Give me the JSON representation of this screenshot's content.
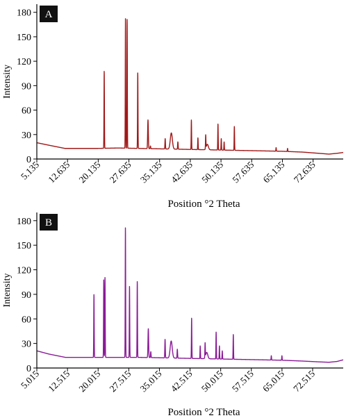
{
  "chart_data": [
    {
      "type": "line",
      "panel_label": "A",
      "xlabel": "Position °2 Theta",
      "ylabel": "Intensity",
      "xlim": [
        5.135,
        80.0
      ],
      "ylim": [
        0,
        190
      ],
      "x_ticks": [
        5.135,
        12.635,
        20.135,
        27.635,
        35.135,
        42.635,
        50.135,
        57.635,
        65.135,
        72.635
      ],
      "x_tick_labels": [
        "5.135",
        "12.635",
        "20.135",
        "27.635",
        "35.135",
        "42.635",
        "50.135",
        "57.635",
        "65.135",
        "72.635"
      ],
      "y_ticks": [
        0,
        30,
        60,
        90,
        120,
        150,
        180
      ],
      "y_tick_labels": [
        "0",
        "30",
        "60",
        "90",
        "120",
        "150",
        "180"
      ],
      "color": "#a01818",
      "baseline": [
        [
          5.135,
          20
        ],
        [
          8.0,
          17
        ],
        [
          12.0,
          13
        ],
        [
          16.0,
          13
        ],
        [
          20.0,
          13
        ],
        [
          25.0,
          13.5
        ],
        [
          30.0,
          13
        ],
        [
          35.0,
          12.5
        ],
        [
          40.0,
          12
        ],
        [
          45.0,
          11.5
        ],
        [
          50.0,
          11
        ],
        [
          55.0,
          10.5
        ],
        [
          60.0,
          10
        ],
        [
          65.0,
          9.5
        ],
        [
          70.0,
          8.5
        ],
        [
          74.0,
          7
        ],
        [
          76.5,
          6
        ],
        [
          78.5,
          7
        ],
        [
          80.0,
          8
        ]
      ],
      "peaks": [
        {
          "x": 21.6,
          "y": 108,
          "w": 0.05
        },
        {
          "x": 26.8,
          "y": 173,
          "w": 0.05
        },
        {
          "x": 27.2,
          "y": 172,
          "w": 0.05
        },
        {
          "x": 29.8,
          "y": 106,
          "w": 0.05
        },
        {
          "x": 32.3,
          "y": 48,
          "w": 0.08
        },
        {
          "x": 32.9,
          "y": 16,
          "w": 0.06
        },
        {
          "x": 36.5,
          "y": 25,
          "w": 0.06
        },
        {
          "x": 38.0,
          "y": 32,
          "w": 0.25
        },
        {
          "x": 39.6,
          "y": 21,
          "w": 0.06
        },
        {
          "x": 42.9,
          "y": 48,
          "w": 0.05
        },
        {
          "x": 44.5,
          "y": 26,
          "w": 0.05
        },
        {
          "x": 46.4,
          "y": 28,
          "w": 0.05
        },
        {
          "x": 46.8,
          "y": 18,
          "w": 0.25
        },
        {
          "x": 49.4,
          "y": 43,
          "w": 0.05
        },
        {
          "x": 50.2,
          "y": 25,
          "w": 0.05
        },
        {
          "x": 50.9,
          "y": 21,
          "w": 0.05
        },
        {
          "x": 53.4,
          "y": 40,
          "w": 0.05
        },
        {
          "x": 63.6,
          "y": 14,
          "w": 0.05
        },
        {
          "x": 66.4,
          "y": 13,
          "w": 0.05
        }
      ]
    },
    {
      "type": "line",
      "panel_label": "B",
      "xlabel": "Position °2 Theta",
      "ylabel": "Intensity",
      "xlim": [
        5.015,
        80.0
      ],
      "ylim": [
        0,
        190
      ],
      "x_ticks": [
        5.015,
        12.515,
        20.015,
        27.515,
        35.015,
        42.515,
        50.015,
        57.515,
        65.015,
        72.515
      ],
      "x_tick_labels": [
        "5.015",
        "12.515",
        "20.015",
        "27.515",
        "35.015",
        "42.515",
        "50.015",
        "57.515",
        "65.015",
        "72.515"
      ],
      "y_ticks": [
        0,
        30,
        60,
        90,
        120,
        150,
        180
      ],
      "y_tick_labels": [
        "0",
        "30",
        "60",
        "90",
        "120",
        "150",
        "180"
      ],
      "color": "#8a1a96",
      "baseline": [
        [
          5.015,
          21
        ],
        [
          8.0,
          17
        ],
        [
          12.0,
          13
        ],
        [
          16.0,
          13
        ],
        [
          20.0,
          13
        ],
        [
          25.0,
          13
        ],
        [
          30.0,
          13
        ],
        [
          35.0,
          12.5
        ],
        [
          40.0,
          12
        ],
        [
          45.0,
          11.5
        ],
        [
          50.0,
          11
        ],
        [
          55.0,
          10.5
        ],
        [
          60.0,
          10
        ],
        [
          65.0,
          9.5
        ],
        [
          70.0,
          8.5
        ],
        [
          74.0,
          7.5
        ],
        [
          76.5,
          7
        ],
        [
          78.5,
          8
        ],
        [
          80.0,
          10
        ]
      ],
      "peaks": [
        {
          "x": 19.0,
          "y": 90,
          "w": 0.05
        },
        {
          "x": 21.4,
          "y": 108,
          "w": 0.05
        },
        {
          "x": 21.7,
          "y": 111,
          "w": 0.05
        },
        {
          "x": 26.7,
          "y": 172,
          "w": 0.05
        },
        {
          "x": 27.7,
          "y": 100,
          "w": 0.05
        },
        {
          "x": 29.6,
          "y": 106,
          "w": 0.05
        },
        {
          "x": 32.3,
          "y": 48,
          "w": 0.08
        },
        {
          "x": 32.9,
          "y": 20,
          "w": 0.06
        },
        {
          "x": 36.4,
          "y": 35,
          "w": 0.06
        },
        {
          "x": 37.9,
          "y": 33,
          "w": 0.25
        },
        {
          "x": 39.4,
          "y": 23,
          "w": 0.06
        },
        {
          "x": 42.9,
          "y": 61,
          "w": 0.05
        },
        {
          "x": 45.0,
          "y": 27,
          "w": 0.05
        },
        {
          "x": 46.2,
          "y": 29,
          "w": 0.05
        },
        {
          "x": 46.6,
          "y": 19,
          "w": 0.25
        },
        {
          "x": 48.9,
          "y": 44,
          "w": 0.05
        },
        {
          "x": 49.7,
          "y": 27,
          "w": 0.05
        },
        {
          "x": 50.4,
          "y": 21,
          "w": 0.05
        },
        {
          "x": 53.1,
          "y": 41,
          "w": 0.05
        },
        {
          "x": 62.4,
          "y": 15,
          "w": 0.05
        },
        {
          "x": 65.0,
          "y": 15,
          "w": 0.05
        }
      ]
    }
  ]
}
